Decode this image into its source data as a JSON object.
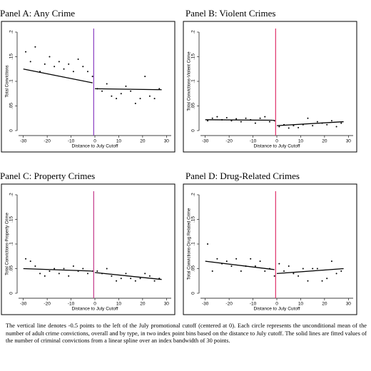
{
  "chart_data": [
    {
      "type": "scatter",
      "title": "Panel A: Any Crime",
      "xlabel": "Distance to July Cutoff",
      "ylabel": "Total Convictions",
      "xlim": [
        -32,
        32
      ],
      "xticks": [
        -30,
        -20,
        -10,
        0,
        10,
        20,
        30
      ],
      "ylim": [
        0,
        0.2
      ],
      "yticks": [
        0,
        {
          "value": 0.05,
          "label": ".05"
        },
        {
          "value": 0.1,
          "label": ".1"
        },
        {
          "value": 0.15,
          "label": ".15"
        },
        {
          "value": 0.2,
          "label": ".2"
        }
      ],
      "cutoff": -0.5,
      "cutoff_color": "#8a3cc2",
      "point_color": "#000000",
      "fit_color": "#000000",
      "x": [
        -29,
        -27,
        -25,
        -23,
        -21,
        -19,
        -17,
        -15,
        -13,
        -11,
        -9,
        -7,
        -5,
        -3,
        -1,
        1,
        3,
        5,
        7,
        9,
        11,
        13,
        15,
        17,
        19,
        21,
        23,
        25,
        27
      ],
      "values": [
        0.16,
        0.14,
        0.17,
        0.12,
        0.135,
        0.15,
        0.13,
        0.14,
        0.125,
        0.135,
        0.12,
        0.145,
        0.13,
        0.12,
        0.11,
        0.085,
        0.08,
        0.095,
        0.07,
        0.065,
        0.075,
        0.09,
        0.08,
        0.055,
        0.065,
        0.11,
        0.07,
        0.065,
        0.085
      ],
      "fits": [
        {
          "x": [
            -30,
            -1
          ],
          "values": [
            0.125,
            0.097
          ]
        },
        {
          "x": [
            0,
            28
          ],
          "values": [
            0.085,
            0.083
          ]
        }
      ]
    },
    {
      "type": "scatter",
      "title": "Panel B: Violent Crimes",
      "xlabel": "Distance to July Cutoff",
      "ylabel": "Total Convictions-Violent Crime",
      "xlim": [
        -32,
        32
      ],
      "xticks": [
        -30,
        -20,
        -10,
        0,
        10,
        20,
        30
      ],
      "ylim": [
        0,
        0.2
      ],
      "yticks": [
        0,
        {
          "value": 0.05,
          "label": ".05"
        },
        {
          "value": 0.1,
          "label": ".1"
        },
        {
          "value": 0.15,
          "label": ".15"
        },
        {
          "value": 0.2,
          "label": ".2"
        }
      ],
      "cutoff": -0.5,
      "cutoff_color": "#e0306a",
      "point_color": "#000000",
      "fit_color": "#000000",
      "x": [
        -29,
        -27,
        -25,
        -23,
        -21,
        -19,
        -17,
        -15,
        -13,
        -11,
        -9,
        -7,
        -5,
        -3,
        -1,
        1,
        3,
        5,
        7,
        9,
        11,
        13,
        15,
        17,
        19,
        21,
        23,
        25,
        27
      ],
      "values": [
        0.02,
        0.025,
        0.028,
        0.022,
        0.026,
        0.02,
        0.024,
        0.018,
        0.025,
        0.022,
        0.015,
        0.025,
        0.028,
        0.018,
        0.02,
        0.008,
        0.012,
        0.005,
        0.01,
        0.006,
        0.012,
        0.025,
        0.01,
        0.018,
        0.015,
        0.012,
        0.02,
        0.008,
        0.015
      ],
      "fits": [
        {
          "x": [
            -30,
            -1
          ],
          "values": [
            0.022,
            0.021
          ]
        },
        {
          "x": [
            0,
            28
          ],
          "values": [
            0.01,
            0.018
          ]
        }
      ]
    },
    {
      "type": "scatter",
      "title": "Panel C: Property Crimes",
      "xlabel": "Distance to July Cutoff",
      "ylabel": "Total Convictions-Property Crime",
      "xlim": [
        -32,
        32
      ],
      "xticks": [
        -30,
        -20,
        -10,
        0,
        10,
        20,
        30
      ],
      "ylim": [
        0,
        0.2
      ],
      "yticks": [
        0,
        {
          "value": 0.05,
          "label": ".05"
        },
        {
          "value": 0.1,
          "label": ".1"
        },
        {
          "value": 0.15,
          "label": ".15"
        },
        {
          "value": 0.2,
          "label": ".2"
        }
      ],
      "cutoff": -0.5,
      "cutoff_color": "#c4388a",
      "point_color": "#000000",
      "fit_color": "#000000",
      "x": [
        -29,
        -27,
        -25,
        -23,
        -21,
        -19,
        -17,
        -15,
        -13,
        -11,
        -9,
        -7,
        -5,
        -3,
        -1,
        1,
        3,
        5,
        7,
        9,
        11,
        13,
        15,
        17,
        19,
        21,
        23,
        25,
        27
      ],
      "values": [
        0.07,
        0.065,
        0.055,
        0.04,
        0.035,
        0.045,
        0.05,
        0.04,
        0.05,
        0.035,
        0.055,
        0.045,
        0.05,
        0.04,
        0.045,
        0.045,
        0.04,
        0.05,
        0.035,
        0.025,
        0.03,
        0.04,
        0.03,
        0.025,
        0.03,
        0.04,
        0.035,
        0.025,
        0.03
      ],
      "fits": [
        {
          "x": [
            -30,
            -1
          ],
          "values": [
            0.05,
            0.045
          ]
        },
        {
          "x": [
            0,
            28
          ],
          "values": [
            0.042,
            0.028
          ]
        }
      ]
    },
    {
      "type": "scatter",
      "title": "Panel D: Drug-Related Crimes",
      "xlabel": "Distance to July Cutoff",
      "ylabel": "Total Convictions-Drug Related Crime",
      "xlim": [
        -32,
        32
      ],
      "xticks": [
        -30,
        -20,
        -10,
        0,
        10,
        20,
        30
      ],
      "ylim": [
        0,
        0.2
      ],
      "yticks": [
        0,
        {
          "value": 0.05,
          "label": ".05"
        },
        {
          "value": 0.1,
          "label": ".1"
        },
        {
          "value": 0.15,
          "label": ".15"
        },
        {
          "value": 0.2,
          "label": ".2"
        }
      ],
      "cutoff": -0.5,
      "cutoff_color": "#e0306a",
      "point_color": "#000000",
      "fit_color": "#000000",
      "x": [
        -29,
        -27,
        -25,
        -23,
        -21,
        -19,
        -17,
        -15,
        -13,
        -11,
        -9,
        -7,
        -5,
        -3,
        -1,
        1,
        3,
        5,
        7,
        9,
        11,
        13,
        15,
        17,
        19,
        21,
        23,
        25,
        27
      ],
      "values": [
        0.1,
        0.045,
        0.07,
        0.06,
        0.065,
        0.055,
        0.07,
        0.045,
        0.055,
        0.07,
        0.055,
        0.065,
        0.045,
        0.05,
        0.035,
        0.06,
        0.045,
        0.055,
        0.04,
        0.035,
        0.05,
        0.025,
        0.05,
        0.05,
        0.025,
        0.03,
        0.065,
        0.04,
        0.045
      ],
      "fits": [
        {
          "x": [
            -30,
            -1
          ],
          "values": [
            0.065,
            0.048
          ]
        },
        {
          "x": [
            0,
            28
          ],
          "values": [
            0.04,
            0.05
          ]
        }
      ]
    }
  ],
  "caption": "The vertical line denotes -0.5 points to the left of the July promotional cutoff (centered at 0). Each circle represents the unconditional mean of the number of adult crime convictions, overall and by type, in two index point bins based on the distance to July cutoff. The solid lines are fitted values of the number of criminal convictions from a linear spline over an index bandwidth of 30 points."
}
